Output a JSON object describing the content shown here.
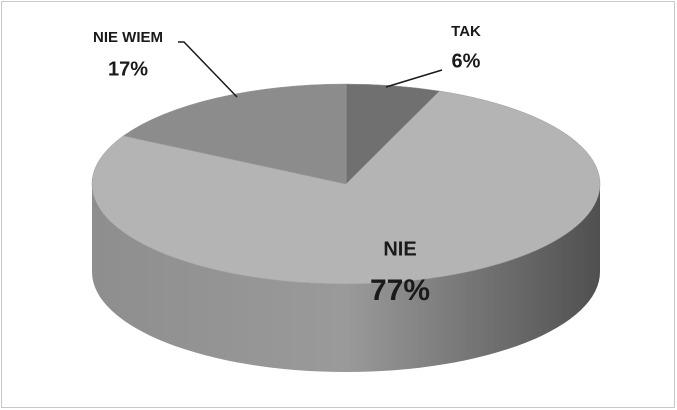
{
  "chart_data": {
    "type": "pie3d",
    "categories": [
      "TAK",
      "NIE",
      "NIE WIEM"
    ],
    "values": [
      6,
      77,
      17
    ],
    "value_labels": [
      "6%",
      "77%",
      "17%"
    ],
    "colors": [
      "#707070",
      "#b4b4b4",
      "#8c8c8c"
    ]
  }
}
